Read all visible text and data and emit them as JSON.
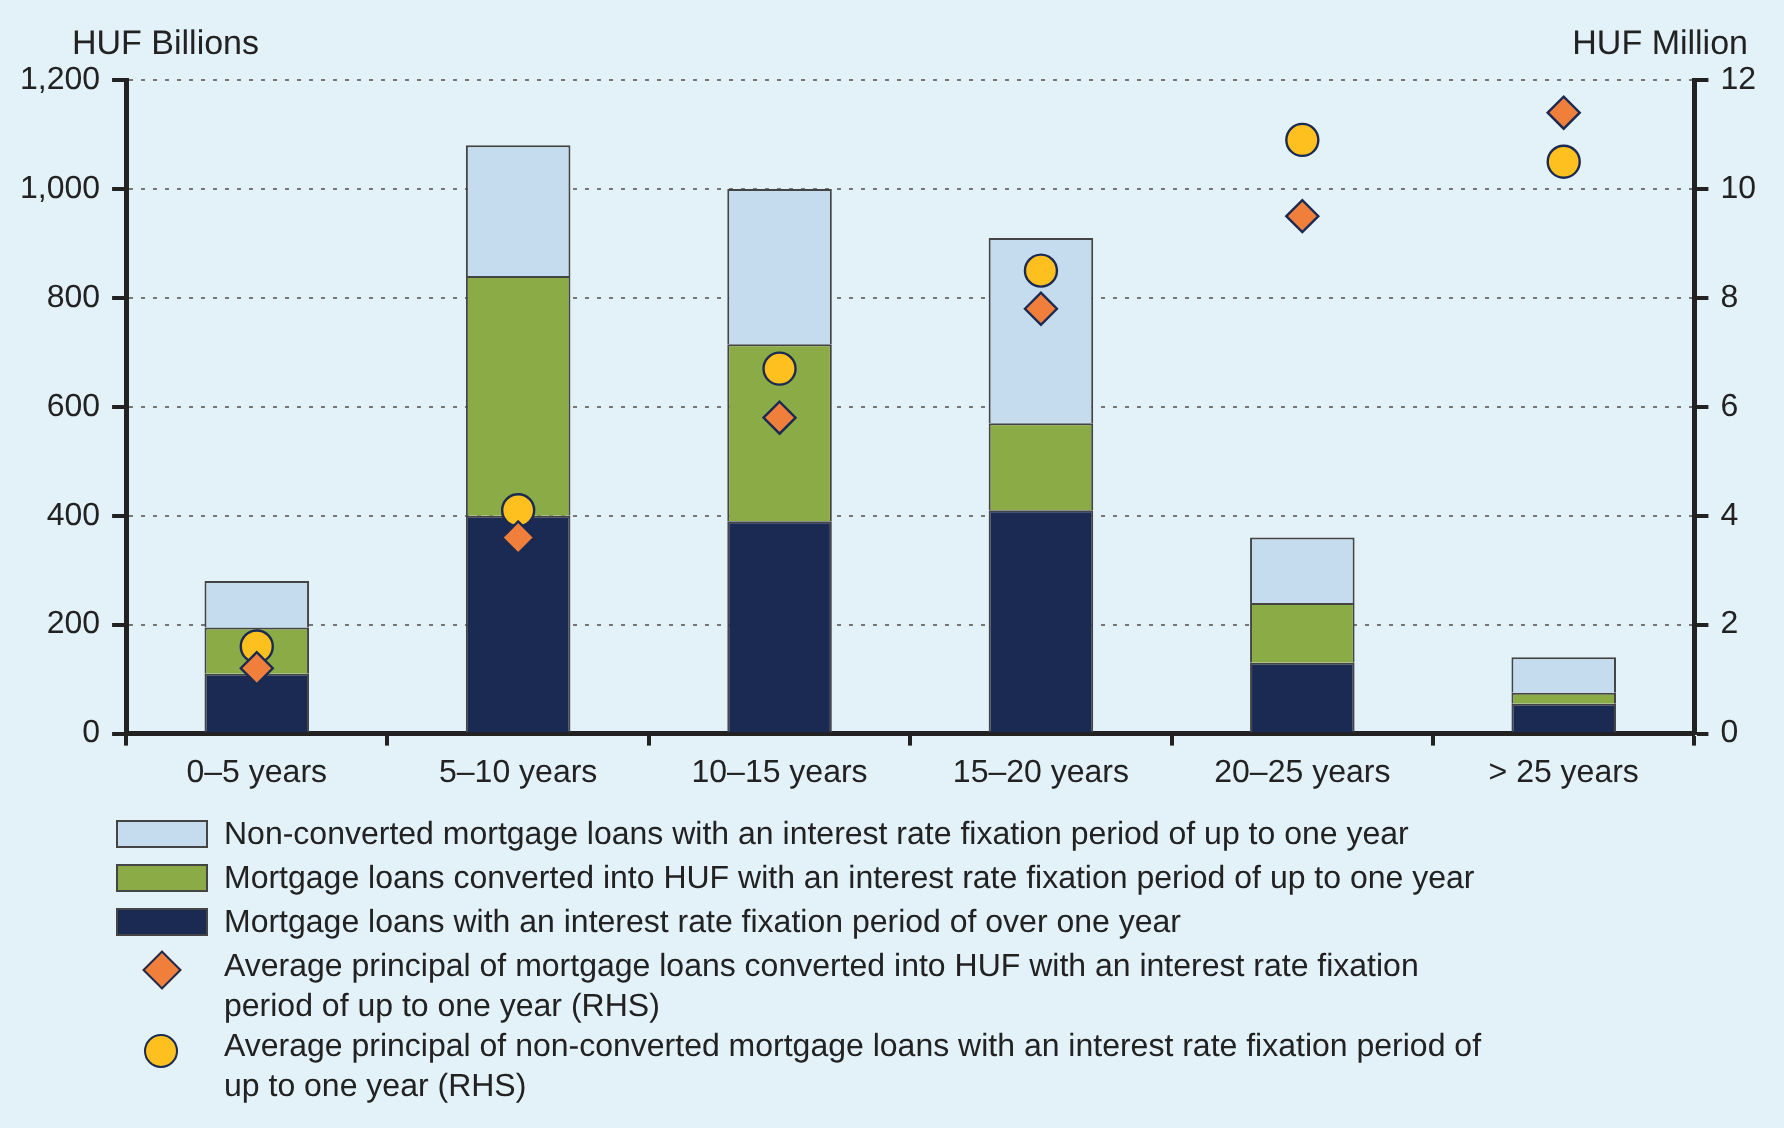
{
  "chart_data": {
    "type": "bar",
    "stacked": true,
    "ylabel": "HUF Billions",
    "y2label": "HUF Million",
    "categories": [
      "0–5 years",
      "5–10 years",
      "10–15 years",
      "15–20 years",
      "20–25 years",
      "> 25 years"
    ],
    "series": [
      {
        "name": "Mortgage loans with an interest rate fixation period of over one year",
        "color": "#1a2a52",
        "values": [
          110,
          400,
          390,
          410,
          130,
          55
        ]
      },
      {
        "name": "Mortgage loans converted into HUF with an interest rate fixation period of up to one year",
        "color": "#8aab45",
        "values": [
          85,
          440,
          325,
          160,
          110,
          20
        ]
      },
      {
        "name": "Non-converted mortgage loans with an interest rate fixation period of up to one year",
        "color": "#c5dcef",
        "values": [
          85,
          240,
          285,
          340,
          120,
          65
        ]
      },
      {
        "name": "Average principal of mortgage loans converted into HUF with an interest rate fixation period of up to one year (RHS)",
        "type": "scatter",
        "axis": "y2",
        "marker": "diamond",
        "color": "#f07f3c",
        "x": [
          "0–5 years",
          "5–10 years",
          "10–15 years",
          "15–20 years",
          "20–25 years",
          "> 25 years"
        ],
        "values": [
          1.2,
          3.6,
          5.8,
          7.8,
          9.5,
          11.4
        ]
      },
      {
        "name": "Average principal of non-converted mortgage loans with an interest rate fixation period of up to one year (RHS)",
        "type": "scatter",
        "axis": "y2",
        "marker": "circle",
        "color": "#fdc01e",
        "x": [
          "0–5 years",
          "5–10 years",
          "10–15 years",
          "15–20 years",
          "20–25 years",
          "> 25 years"
        ],
        "values": [
          1.6,
          4.1,
          6.7,
          8.5,
          10.9,
          10.5
        ]
      }
    ],
    "ylim": [
      0,
      1200
    ],
    "yticks": [
      0,
      200,
      400,
      600,
      800,
      {
        "value": 1000,
        "label": "1,000"
      },
      {
        "value": 1200,
        "label": "1,200"
      }
    ],
    "y2lim": [
      0,
      12
    ],
    "y2ticks": [
      0,
      2,
      4,
      6,
      8,
      10,
      12
    ],
    "grid": "y",
    "legend": "bottom"
  }
}
